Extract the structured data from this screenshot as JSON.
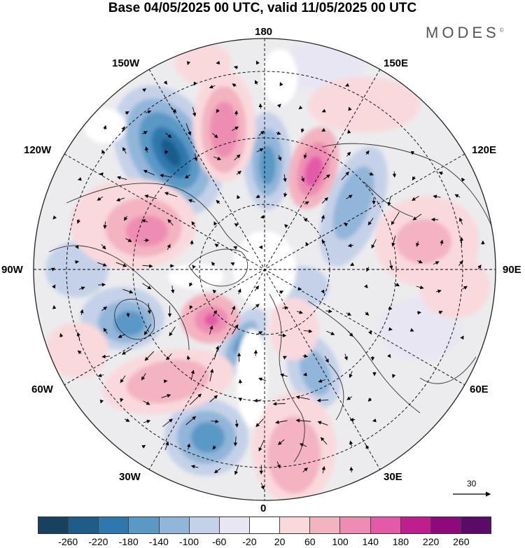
{
  "header": {
    "title": "Base 04/05/2025 00 UTC, valid 11/05/2025 00 UTC",
    "brand": "MODES",
    "brand_mark": "©"
  },
  "map": {
    "projection": "north polar stereographic",
    "longitude_labels": {
      "top": "180",
      "top_left": "150W",
      "top_right": "150E",
      "upper_left": "120W",
      "upper_right": "120E",
      "left": "90W",
      "right": "90E",
      "lower_left": "60W",
      "lower_right": "60E",
      "bottom_left": "30W",
      "bottom_right": "30E",
      "bottom": "0"
    },
    "reference_vector_value": "30",
    "colors": {
      "land_outline": "#333333",
      "graticule": "#000000",
      "vector": "#000000"
    }
  },
  "colorbar": {
    "tick_labels": [
      "-260",
      "-220",
      "-180",
      "-140",
      "-100",
      "-60",
      "-20",
      "20",
      "60",
      "100",
      "140",
      "180",
      "220",
      "260"
    ],
    "colors": [
      "#17415f",
      "#1f5c8a",
      "#2f78ad",
      "#5a98c6",
      "#91b6d9",
      "#c4d1e8",
      "#e7e6f2",
      "#ffffff",
      "#f9d9dc",
      "#f3b3c0",
      "#ee8db3",
      "#e35aa7",
      "#bf1e8f",
      "#8e0a7c",
      "#5a0b68"
    ]
  }
}
